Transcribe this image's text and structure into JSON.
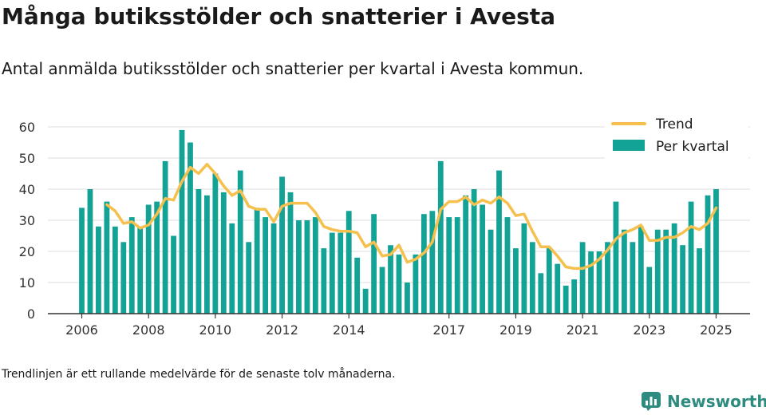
{
  "title": "Många butiksstölder och snatterier i Avesta",
  "subtitle": "Antal anmälda butiksstölder och snatterier per kvartal i Avesta kommun.",
  "footnote": "Trendlinjen är ett rullande medelvärde för de senaste tolv månaderna.",
  "brand": "Newsworthy",
  "colors": {
    "bar": "#13a396",
    "trend": "#f5c04e",
    "grid": "#dddddd",
    "axis": "#333333",
    "brand": "#2e8b7f"
  },
  "chart_data": {
    "type": "bar",
    "title": "",
    "xlabel": "",
    "ylabel": "",
    "ylim": [
      0,
      60
    ],
    "yticks": [
      0,
      10,
      20,
      30,
      40,
      50,
      60
    ],
    "xticks": [
      "2006",
      "2008",
      "2010",
      "2012",
      "2014",
      "2017",
      "2019",
      "2021",
      "2023",
      "2025"
    ],
    "grid": true,
    "legend": "top-right",
    "series": [
      {
        "name": "Per kvartal",
        "type": "bar",
        "values": [
          34,
          40,
          28,
          36,
          28,
          23,
          31,
          28,
          35,
          36,
          49,
          25,
          59,
          55,
          40,
          38,
          45,
          39,
          29,
          46,
          23,
          34,
          31,
          29,
          44,
          39,
          30,
          30,
          31,
          21,
          26,
          26,
          33,
          18,
          8,
          32,
          15,
          22,
          19,
          10,
          19,
          32,
          33,
          49,
          31,
          31,
          38,
          40,
          35,
          27,
          46,
          31,
          21,
          29,
          23,
          13,
          21,
          16,
          9,
          11,
          23,
          20,
          20,
          23,
          36,
          27,
          23,
          28,
          15,
          27,
          27,
          29,
          22,
          36,
          21,
          38,
          40
        ]
      },
      {
        "name": "Trend",
        "type": "line",
        "values": [
          35,
          33,
          29,
          29.5,
          27.5,
          28.5,
          32,
          37,
          36.5,
          42.5,
          47,
          45,
          48,
          45,
          41,
          38,
          39.5,
          34.5,
          33.5,
          33.5,
          29.5,
          34.5,
          35.5,
          35.5,
          35.5,
          32.5,
          28,
          27,
          26.5,
          26.5,
          26,
          21.5,
          23,
          18.5,
          19,
          22,
          16.5,
          17.5,
          19.5,
          23,
          33.5,
          36,
          36,
          37.5,
          35,
          36.5,
          35.5,
          37.5,
          35.5,
          31.5,
          32,
          26.5,
          21.5,
          21.5,
          18.5,
          15,
          14.5,
          14.5,
          15.5,
          17.5,
          20.5,
          24,
          26,
          27,
          28.5,
          23.5,
          23.5,
          24.5,
          24.5,
          26,
          28,
          27,
          29,
          34
        ]
      }
    ]
  }
}
